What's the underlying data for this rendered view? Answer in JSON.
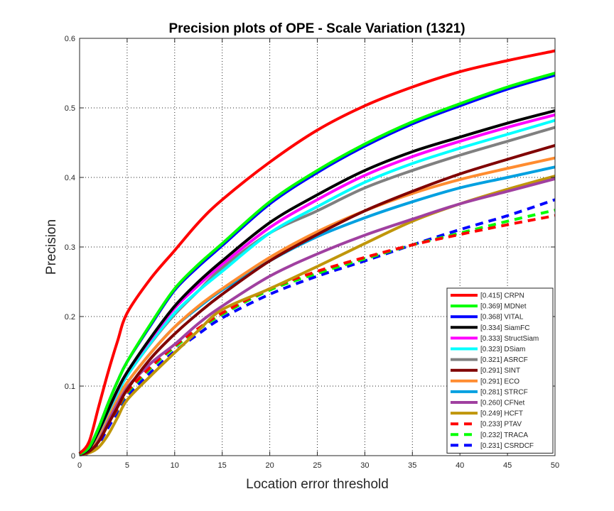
{
  "chart_data": {
    "type": "line",
    "title": "Precision plots of OPE - Scale Variation (1321)",
    "xlabel": "Location error threshold",
    "ylabel": "Precision",
    "xlim": [
      0,
      50
    ],
    "ylim": [
      0,
      0.6
    ],
    "xticks": [
      0,
      5,
      10,
      15,
      20,
      25,
      30,
      35,
      40,
      45,
      50
    ],
    "yticks": [
      0,
      0.1,
      0.2,
      0.3,
      0.4,
      0.5,
      0.6
    ],
    "grid": true,
    "legend_position": "bottom-right",
    "x": [
      0,
      1,
      2,
      3,
      4,
      5,
      7.5,
      10,
      12.5,
      15,
      20,
      25,
      30,
      35,
      40,
      45,
      50
    ],
    "series": [
      {
        "name": "CRPN",
        "score": "[0.415]",
        "color": "#ff0000",
        "dashed": false,
        "values": [
          0.003,
          0.02,
          0.07,
          0.12,
          0.165,
          0.205,
          0.255,
          0.295,
          0.335,
          0.368,
          0.422,
          0.468,
          0.503,
          0.53,
          0.552,
          0.568,
          0.582
        ]
      },
      {
        "name": "MDNet",
        "score": "[0.369]",
        "color": "#00ff00",
        "dashed": false,
        "values": [
          0.002,
          0.012,
          0.04,
          0.075,
          0.107,
          0.135,
          0.19,
          0.24,
          0.275,
          0.305,
          0.365,
          0.41,
          0.448,
          0.48,
          0.506,
          0.53,
          0.55
        ]
      },
      {
        "name": "VITAL",
        "score": "[0.368]",
        "color": "#0000ff",
        "dashed": false,
        "values": [
          0.002,
          0.012,
          0.04,
          0.075,
          0.107,
          0.135,
          0.188,
          0.238,
          0.272,
          0.302,
          0.362,
          0.407,
          0.445,
          0.477,
          0.503,
          0.527,
          0.547
        ]
      },
      {
        "name": "SiamFC",
        "score": "[0.334]",
        "color": "#000000",
        "dashed": false,
        "values": [
          0.002,
          0.01,
          0.035,
          0.065,
          0.095,
          0.12,
          0.17,
          0.215,
          0.25,
          0.28,
          0.335,
          0.375,
          0.41,
          0.437,
          0.458,
          0.478,
          0.496
        ]
      },
      {
        "name": "StructSiam",
        "score": "[0.333]",
        "color": "#ff00ff",
        "dashed": false,
        "values": [
          0.002,
          0.01,
          0.035,
          0.065,
          0.094,
          0.12,
          0.168,
          0.212,
          0.245,
          0.275,
          0.328,
          0.368,
          0.403,
          0.43,
          0.452,
          0.472,
          0.49
        ]
      },
      {
        "name": "DSiam",
        "score": "[0.323]",
        "color": "#00ffff",
        "dashed": false,
        "values": [
          0.002,
          0.01,
          0.034,
          0.063,
          0.09,
          0.115,
          0.163,
          0.205,
          0.237,
          0.265,
          0.32,
          0.358,
          0.393,
          0.42,
          0.442,
          0.462,
          0.482
        ]
      },
      {
        "name": "ASRCF",
        "score": "[0.321]",
        "color": "#808080",
        "dashed": false,
        "values": [
          0.002,
          0.01,
          0.034,
          0.063,
          0.09,
          0.115,
          0.162,
          0.203,
          0.237,
          0.27,
          0.32,
          0.352,
          0.385,
          0.41,
          0.432,
          0.452,
          0.472
        ]
      },
      {
        "name": "SINT",
        "score": "[0.291]",
        "color": "#800000",
        "dashed": false,
        "values": [
          0.001,
          0.006,
          0.02,
          0.045,
          0.07,
          0.095,
          0.14,
          0.175,
          0.205,
          0.232,
          0.28,
          0.318,
          0.352,
          0.38,
          0.405,
          0.426,
          0.446
        ]
      },
      {
        "name": "ECO",
        "score": "[0.291]",
        "color": "#ff8c30",
        "dashed": false,
        "values": [
          0.001,
          0.008,
          0.03,
          0.058,
          0.083,
          0.105,
          0.148,
          0.185,
          0.215,
          0.24,
          0.285,
          0.322,
          0.352,
          0.377,
          0.397,
          0.413,
          0.428
        ]
      },
      {
        "name": "STRCF",
        "score": "[0.281]",
        "color": "#00a0e0",
        "dashed": false,
        "values": [
          0.001,
          0.008,
          0.03,
          0.058,
          0.083,
          0.105,
          0.148,
          0.185,
          0.213,
          0.238,
          0.28,
          0.315,
          0.342,
          0.365,
          0.385,
          0.4,
          0.415
        ]
      },
      {
        "name": "CFNet",
        "score": "[0.260]",
        "color": "#a040a0",
        "dashed": false,
        "values": [
          0.001,
          0.007,
          0.025,
          0.05,
          0.075,
          0.098,
          0.133,
          0.16,
          0.19,
          0.215,
          0.258,
          0.29,
          0.317,
          0.34,
          0.362,
          0.38,
          0.398
        ]
      },
      {
        "name": "HCFT",
        "score": "[0.249]",
        "color": "#c0960a",
        "dashed": false,
        "values": [
          0.001,
          0.004,
          0.012,
          0.03,
          0.055,
          0.08,
          0.115,
          0.148,
          0.18,
          0.21,
          0.24,
          0.272,
          0.305,
          0.337,
          0.362,
          0.383,
          0.402
        ]
      },
      {
        "name": "PTAV",
        "score": "[0.233]",
        "color": "#ff0000",
        "dashed": true,
        "values": [
          0.001,
          0.005,
          0.02,
          0.045,
          0.068,
          0.092,
          0.128,
          0.158,
          0.183,
          0.205,
          0.24,
          0.265,
          0.285,
          0.303,
          0.318,
          0.332,
          0.345
        ]
      },
      {
        "name": "TRACA",
        "score": "[0.232]",
        "color": "#00ff00",
        "dashed": true,
        "values": [
          0.001,
          0.005,
          0.02,
          0.045,
          0.067,
          0.09,
          0.126,
          0.156,
          0.181,
          0.203,
          0.238,
          0.262,
          0.283,
          0.303,
          0.32,
          0.337,
          0.353
        ]
      },
      {
        "name": "CSRDCF",
        "score": "[0.231]",
        "color": "#0000ff",
        "dashed": true,
        "values": [
          0.001,
          0.004,
          0.017,
          0.04,
          0.063,
          0.085,
          0.12,
          0.15,
          0.175,
          0.198,
          0.232,
          0.258,
          0.28,
          0.303,
          0.325,
          0.345,
          0.368
        ]
      }
    ]
  }
}
